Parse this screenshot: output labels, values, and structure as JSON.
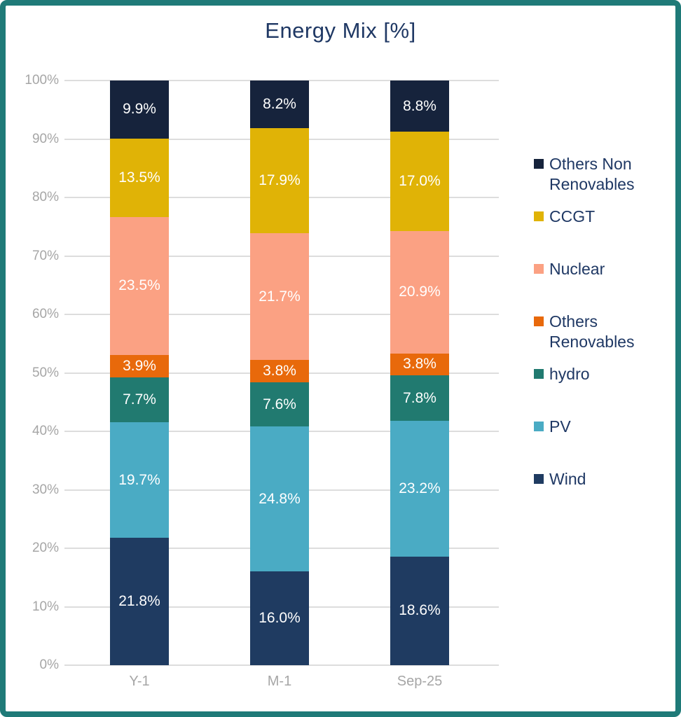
{
  "title": "Energy Mix [%]",
  "colors": {
    "frame_border": "#1F7A78",
    "title_text": "#1F3864",
    "axis_text": "#A6A6A6",
    "gridline": "#DDDDDD",
    "data_label_text": "#FFFFFF"
  },
  "chart_data": {
    "type": "bar",
    "stacked": true,
    "title": "Energy Mix [%]",
    "categories": [
      "Y-1",
      "M-1",
      "Sep-25"
    ],
    "series": [
      {
        "name": "Others Non Renovables",
        "color": "#16233C",
        "values": [
          9.9,
          8.2,
          8.8
        ]
      },
      {
        "name": "CCGT",
        "color": "#E0B306",
        "values": [
          13.5,
          17.9,
          17.0
        ]
      },
      {
        "name": "Nuclear",
        "color": "#FBA183",
        "values": [
          23.5,
          21.7,
          20.9
        ]
      },
      {
        "name": "Others Renovables",
        "color": "#E8690B",
        "values": [
          3.9,
          3.8,
          3.8
        ]
      },
      {
        "name": "hydro",
        "color": "#217A70",
        "values": [
          7.7,
          7.6,
          7.8
        ]
      },
      {
        "name": "PV",
        "color": "#4AABC4",
        "values": [
          19.7,
          24.8,
          23.2
        ]
      },
      {
        "name": "Wind",
        "color": "#1F3B61",
        "values": [
          21.8,
          16.0,
          18.6
        ]
      }
    ],
    "ylim": [
      0,
      100
    ],
    "yticks": [
      "0%",
      "10%",
      "20%",
      "30%",
      "40%",
      "50%",
      "60%",
      "70%",
      "80%",
      "90%",
      "100%"
    ],
    "grid": true,
    "legend_position": "right",
    "data_label_format": "one_decimal_percent"
  }
}
